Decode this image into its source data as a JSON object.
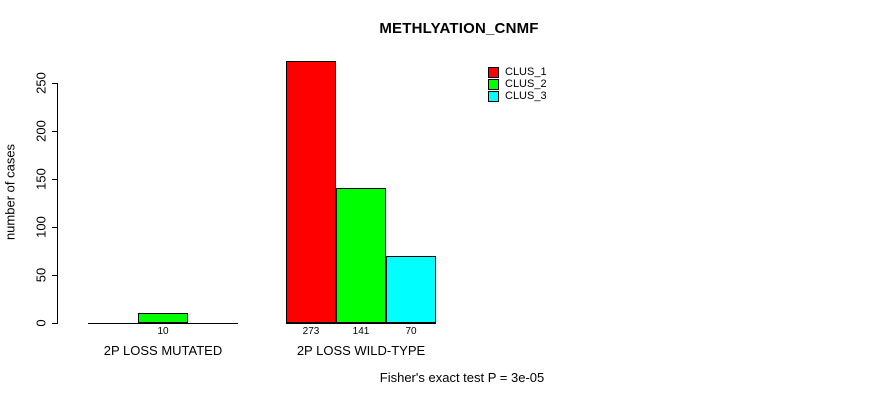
{
  "chart_data": {
    "type": "bar",
    "title": "METHLYATION_CNMF",
    "ylabel": "number of cases",
    "xlabel": "",
    "yticks": [
      0,
      50,
      100,
      150,
      200,
      250
    ],
    "ylim": [
      0,
      275
    ],
    "grid": false,
    "legend_position": "top-right",
    "categories": [
      "2P LOSS MUTATED",
      "2P LOSS WILD-TYPE"
    ],
    "series": [
      {
        "name": "CLUS_1",
        "color": "#ff0000",
        "values": [
          0,
          273
        ]
      },
      {
        "name": "CLUS_2",
        "color": "#00ff00",
        "values": [
          10,
          141
        ]
      },
      {
        "name": "CLUS_3",
        "color": "#00ffff",
        "values": [
          0,
          70
        ]
      }
    ],
    "bar_value_labels": [
      "10",
      "273",
      "141",
      "70"
    ],
    "annotation": "Fisher's exact test P = 3e-05"
  }
}
